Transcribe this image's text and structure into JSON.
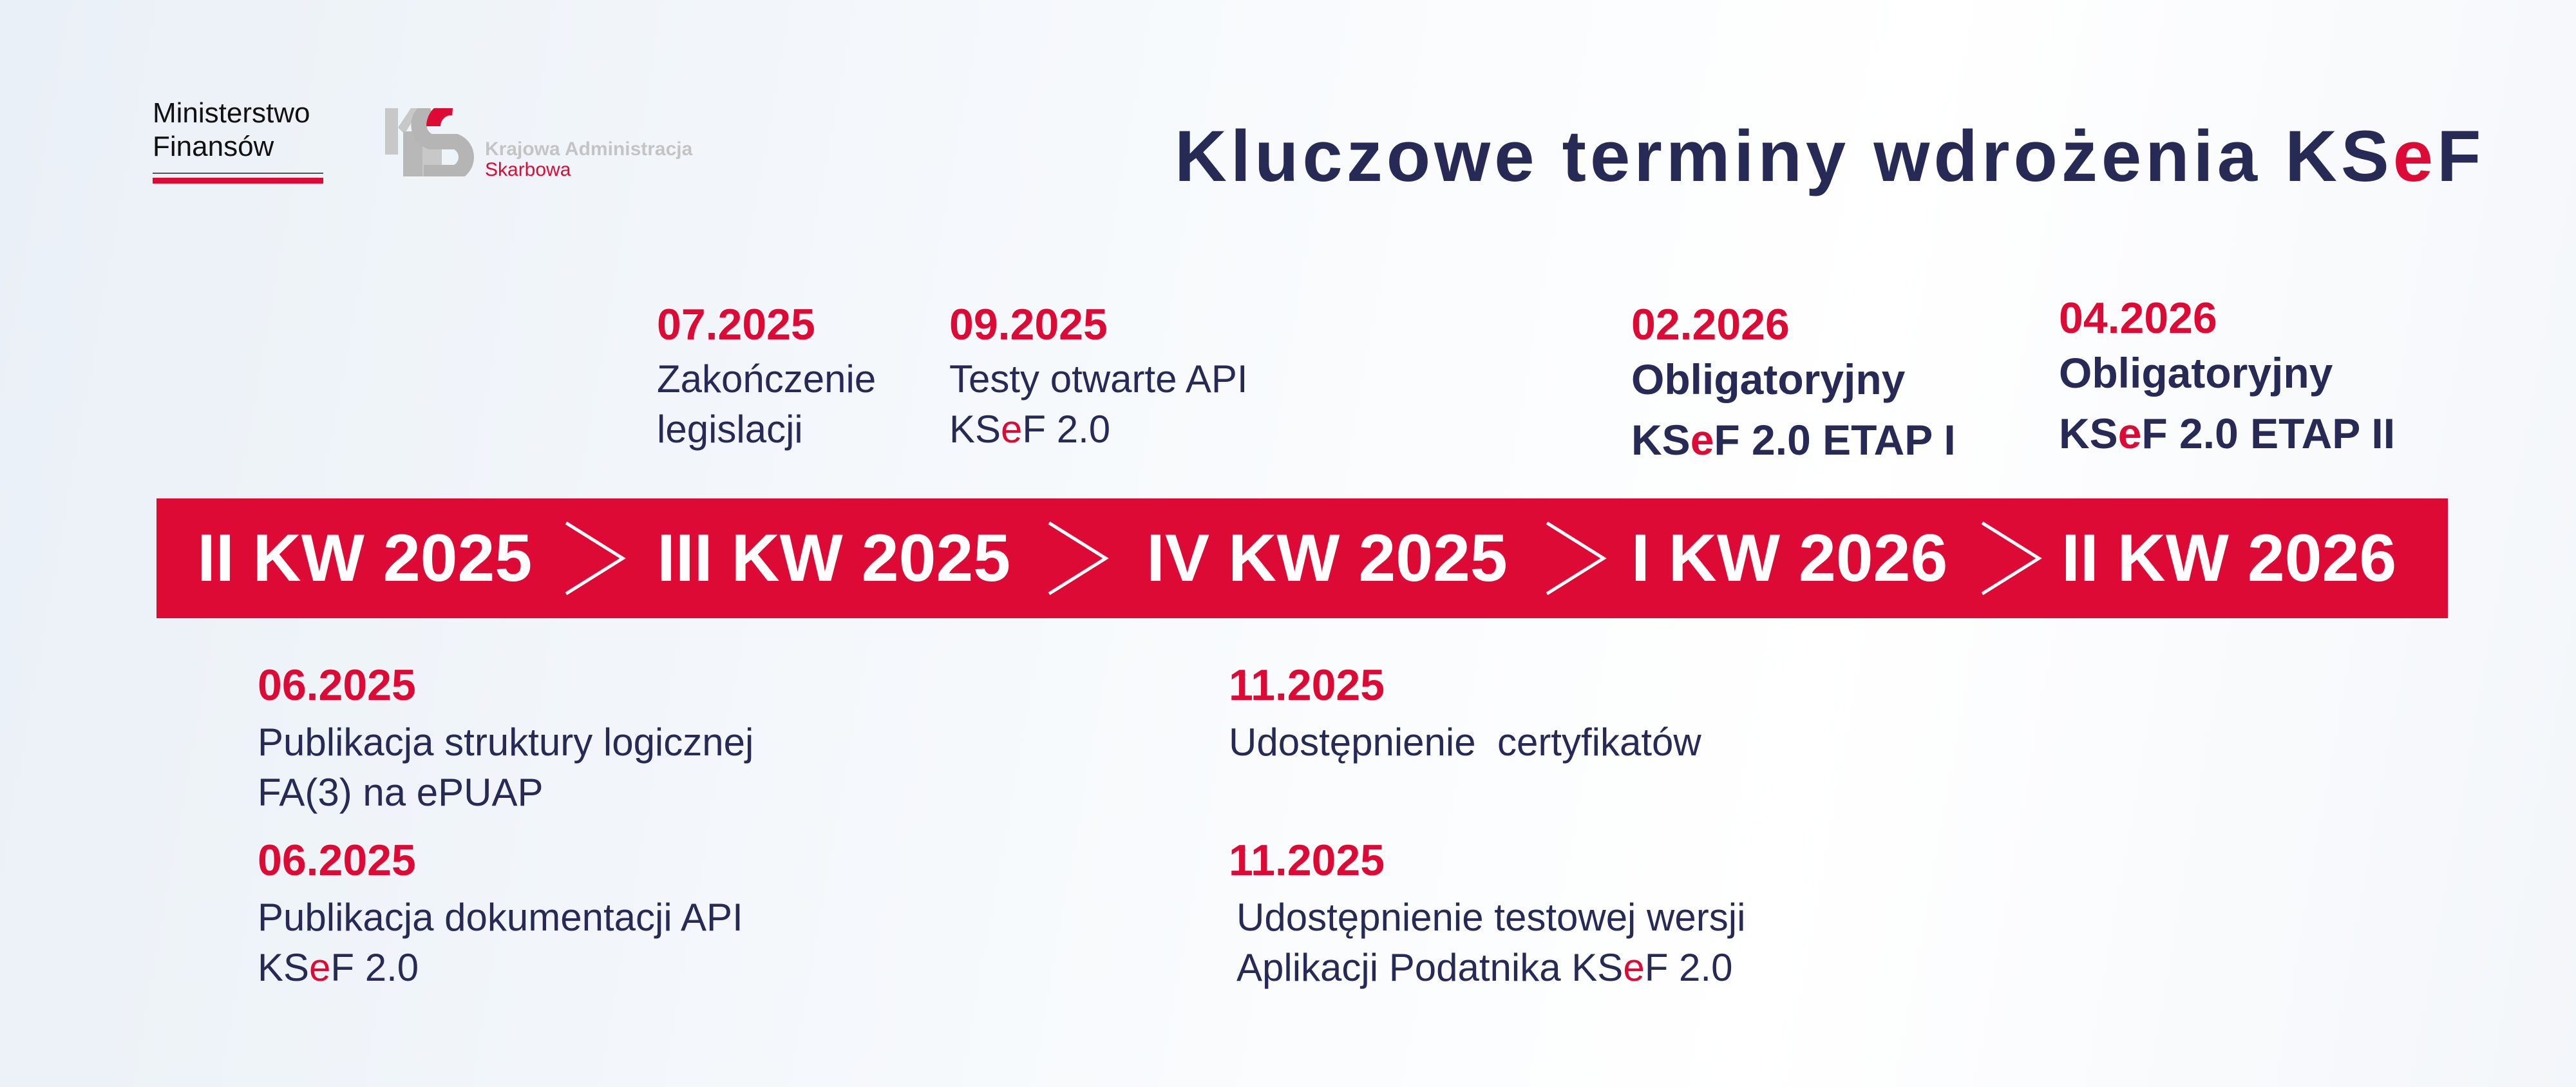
{
  "header": {
    "ministry": [
      "Ministerstwo",
      "Finansów"
    ],
    "kas_logo": {
      "line1": "Krajowa Administracja",
      "line2": "Skarbowa"
    },
    "title": {
      "pre": "Kluczowe terminy wdrożenia KS",
      "accent": "e",
      "post": "F"
    }
  },
  "colors": {
    "accent": "#dc0a35",
    "text": "#262a55",
    "band_text": "#ffffff"
  },
  "quarters": [
    "II KW 2025",
    "III KW 2025",
    "IV KW 2025",
    "I KW 2026",
    "II KW 2026"
  ],
  "above": [
    {
      "date": "07.2025",
      "lines": [
        "Zakończenie",
        "legislacji"
      ]
    },
    {
      "date": "09.2025",
      "line1": "Testy otwarte API",
      "line2": {
        "pre": "KS",
        "accent": "e",
        "post": "F 2.0"
      }
    },
    {
      "date": "02.2026",
      "line1": "Obligatoryjny",
      "line2": {
        "pre": "KS",
        "accent": "e",
        "post": "F 2.0 ETAP I"
      }
    },
    {
      "date": "04.2026",
      "line1": "Obligatoryjny",
      "line2": {
        "pre": "KS",
        "accent": "e",
        "post": "F 2.0 ETAP II"
      }
    }
  ],
  "below": [
    {
      "date": "06.2025",
      "lines": [
        "Publikacja struktury logicznej",
        "FA(3) na ePUAP"
      ]
    },
    {
      "date": "06.2025",
      "line1": "Publikacja dokumentacji API",
      "line2": {
        "pre": "KS",
        "accent": "e",
        "post": "F 2.0"
      }
    },
    {
      "date": "11.2025",
      "lines": [
        "Udostępnienie  certyfikatów"
      ]
    },
    {
      "date": "11.2025",
      "line1": "Udostępnienie testowej wersji",
      "line2": {
        "pre": "Aplikacji Podatnika KS",
        "accent": "e",
        "post": "F 2.0"
      }
    }
  ]
}
